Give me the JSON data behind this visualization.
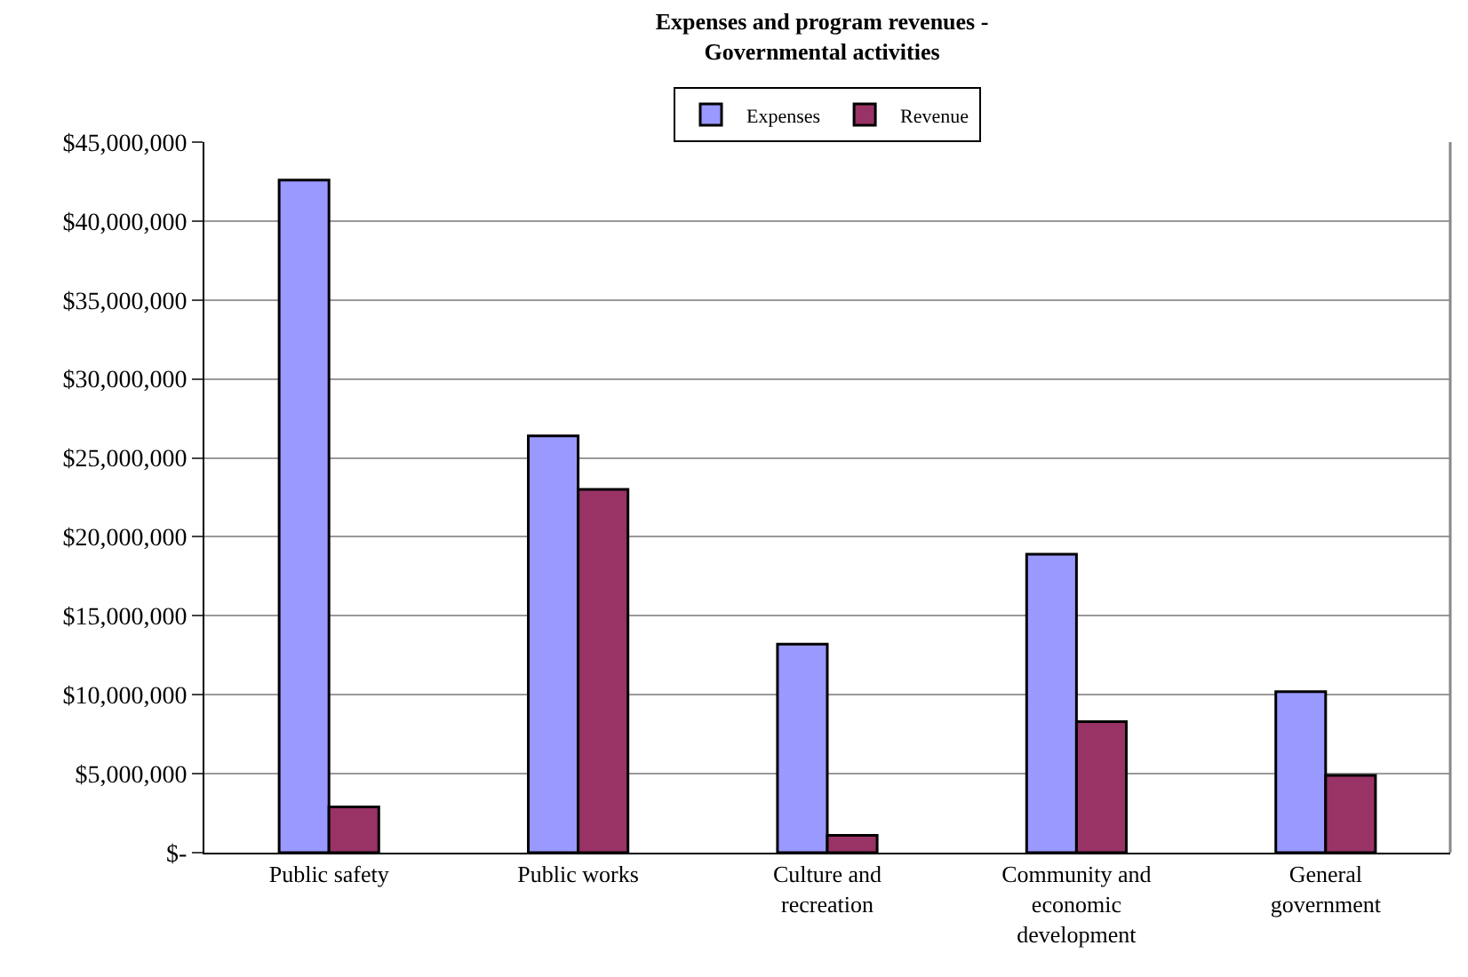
{
  "chart_data": {
    "type": "bar",
    "title": "Expenses and program revenues -\nGovernmental activities",
    "categories": [
      "Public safety",
      "Public works",
      "Culture and\nrecreation",
      "Community and\neconomic\ndevelopment",
      "General\ngovernment"
    ],
    "series": [
      {
        "name": "Expenses",
        "color": "#9999ff",
        "values": [
          42600000,
          26400000,
          13200000,
          18900000,
          10200000
        ]
      },
      {
        "name": "Revenue",
        "color": "#993366",
        "values": [
          2900000,
          23000000,
          1100000,
          8300000,
          4900000
        ]
      }
    ],
    "ylim": [
      0,
      45000000
    ],
    "yticks": [
      {
        "value": 0,
        "label": "$-"
      },
      {
        "value": 5000000,
        "label": "$5,000,000"
      },
      {
        "value": 10000000,
        "label": "$10,000,000"
      },
      {
        "value": 15000000,
        "label": "$15,000,000"
      },
      {
        "value": 20000000,
        "label": "$20,000,000"
      },
      {
        "value": 25000000,
        "label": "$25,000,000"
      },
      {
        "value": 30000000,
        "label": "$30,000,000"
      },
      {
        "value": 35000000,
        "label": "$35,000,000"
      },
      {
        "value": 40000000,
        "label": "$40,000,000"
      },
      {
        "value": 45000000,
        "label": "$45,000,000"
      }
    ],
    "grid": "y",
    "legend": "top"
  }
}
